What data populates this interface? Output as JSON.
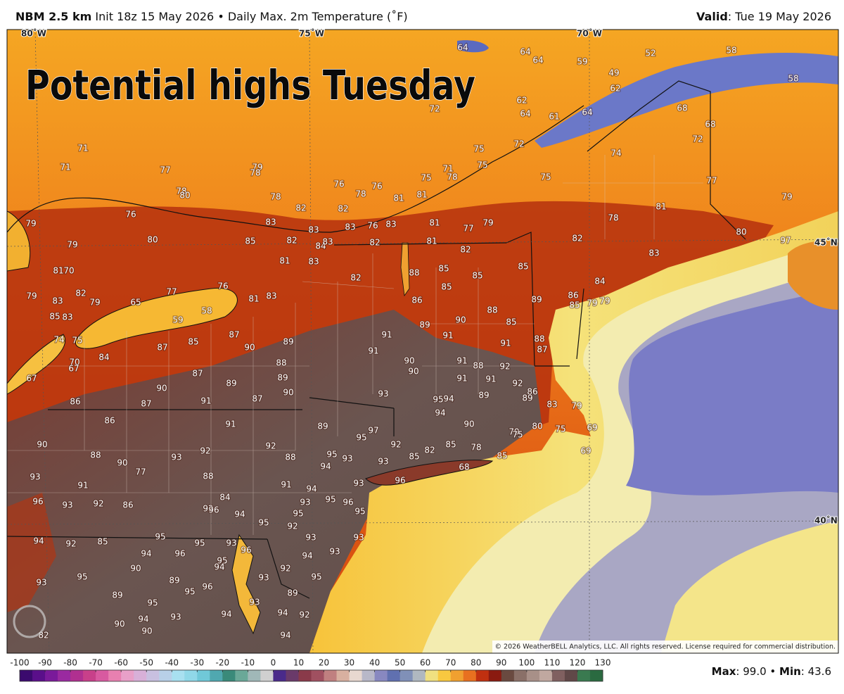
{
  "header": {
    "model": "NBM 2.5 km",
    "description": " Init 18z 15 May 2026 • Daily Max. 2m Temperature (˚F)",
    "valid_label": "Valid",
    "valid_text": ": Tue 19 May 2026"
  },
  "overlay_title": "Potential highs Tuesday",
  "graticule": {
    "longitudes": [
      "80˚W",
      "75˚W",
      "70˚W"
    ],
    "latitudes": [
      "45˚N",
      "40˚N"
    ]
  },
  "map": {
    "temperatures": [
      64,
      64,
      64,
      59,
      52,
      58,
      49,
      58,
      62,
      62,
      72,
      64,
      61,
      64,
      68,
      68,
      72,
      72,
      75,
      75,
      74,
      71,
      78,
      75,
      75,
      77,
      71,
      71,
      77,
      79,
      78,
      76,
      76,
      78,
      78,
      78,
      80,
      81,
      81,
      79,
      76,
      82,
      82,
      81,
      78,
      83,
      83,
      83,
      76,
      83,
      81,
      77,
      79,
      80,
      85,
      82,
      84,
      83,
      82,
      81,
      82,
      82,
      80,
      79,
      79,
      97,
      81,
      83,
      88,
      85,
      85,
      85,
      83,
      81,
      70,
      82,
      82,
      85,
      84,
      79,
      83,
      79,
      65,
      77,
      76,
      58,
      81,
      83,
      86,
      88,
      89,
      86,
      85,
      79,
      79,
      85,
      83,
      59,
      89,
      90,
      85,
      91,
      91,
      88,
      87,
      74,
      75,
      87,
      85,
      87,
      90,
      89,
      91,
      91,
      84,
      70,
      67,
      67,
      88,
      89,
      90,
      90,
      91,
      88,
      92,
      87,
      89,
      90,
      90,
      87,
      91,
      87,
      86,
      93,
      91,
      91,
      92,
      86,
      89,
      89,
      95,
      94,
      94,
      83,
      79,
      86,
      91,
      89,
      95,
      97,
      90,
      79,
      75,
      80,
      75,
      69,
      90,
      92,
      92,
      82,
      85,
      78,
      85,
      88,
      90,
      92,
      93,
      88,
      95,
      94,
      93,
      93,
      85,
      69,
      68,
      77,
      88,
      93,
      91,
      91,
      94,
      93,
      96,
      84,
      96,
      93,
      92,
      86,
      92,
      96,
      94,
      93,
      95,
      96,
      95,
      95,
      95,
      92,
      94,
      92,
      85,
      95,
      95,
      93,
      93,
      93,
      94,
      96,
      96,
      93,
      90,
      95,
      94,
      94,
      92,
      95,
      89,
      96,
      95,
      93,
      95,
      93,
      89,
      89,
      95,
      93,
      94,
      90,
      93,
      94,
      94,
      92,
      90,
      82,
      94,
      92,
      87
    ],
    "copyright": "© 2026 WeatherBELL Analytics, LLC. All rights reserved. License required for commercial distribution."
  },
  "colorbar": {
    "ticks": [
      -100,
      -90,
      -80,
      -70,
      -60,
      -50,
      -40,
      -30,
      -20,
      -10,
      0,
      10,
      20,
      30,
      40,
      50,
      60,
      70,
      80,
      90,
      100,
      110,
      120,
      130
    ],
    "colors": [
      "#3b0a6e",
      "#5a0f8a",
      "#7a1a9a",
      "#9a2aa0",
      "#b03090",
      "#c8408a",
      "#d85aa0",
      "#e880b0",
      "#e8a0c8",
      "#d8b0d8",
      "#c8c0e0",
      "#b8d0e8",
      "#a8e0f0",
      "#90d8e8",
      "#70c8d8",
      "#50a8b0",
      "#3a8a7a",
      "#6aa898",
      "#a0b8b8",
      "#d0d0d0",
      "#4a2a8a",
      "#6a3a6a",
      "#8a3a4a",
      "#a05060",
      "#c08080",
      "#d8b0a0",
      "#e8d8d0",
      "#b8b8c8",
      "#8888c0",
      "#6070b0",
      "#8090b8",
      "#b0b8c0",
      "#f0e080",
      "#f8c840",
      "#f0a030",
      "#e87020",
      "#c03010",
      "#8a1a10",
      "#6a4a40",
      "#8a7068",
      "#a89088",
      "#c0a8a0",
      "#806060",
      "#604848",
      "#3a7a50",
      "#2a6a40"
    ]
  },
  "stats": {
    "max_label": "Max",
    "max_text": ": 99.0 • ",
    "min_label": "Min",
    "min_text": ": 43.6"
  }
}
